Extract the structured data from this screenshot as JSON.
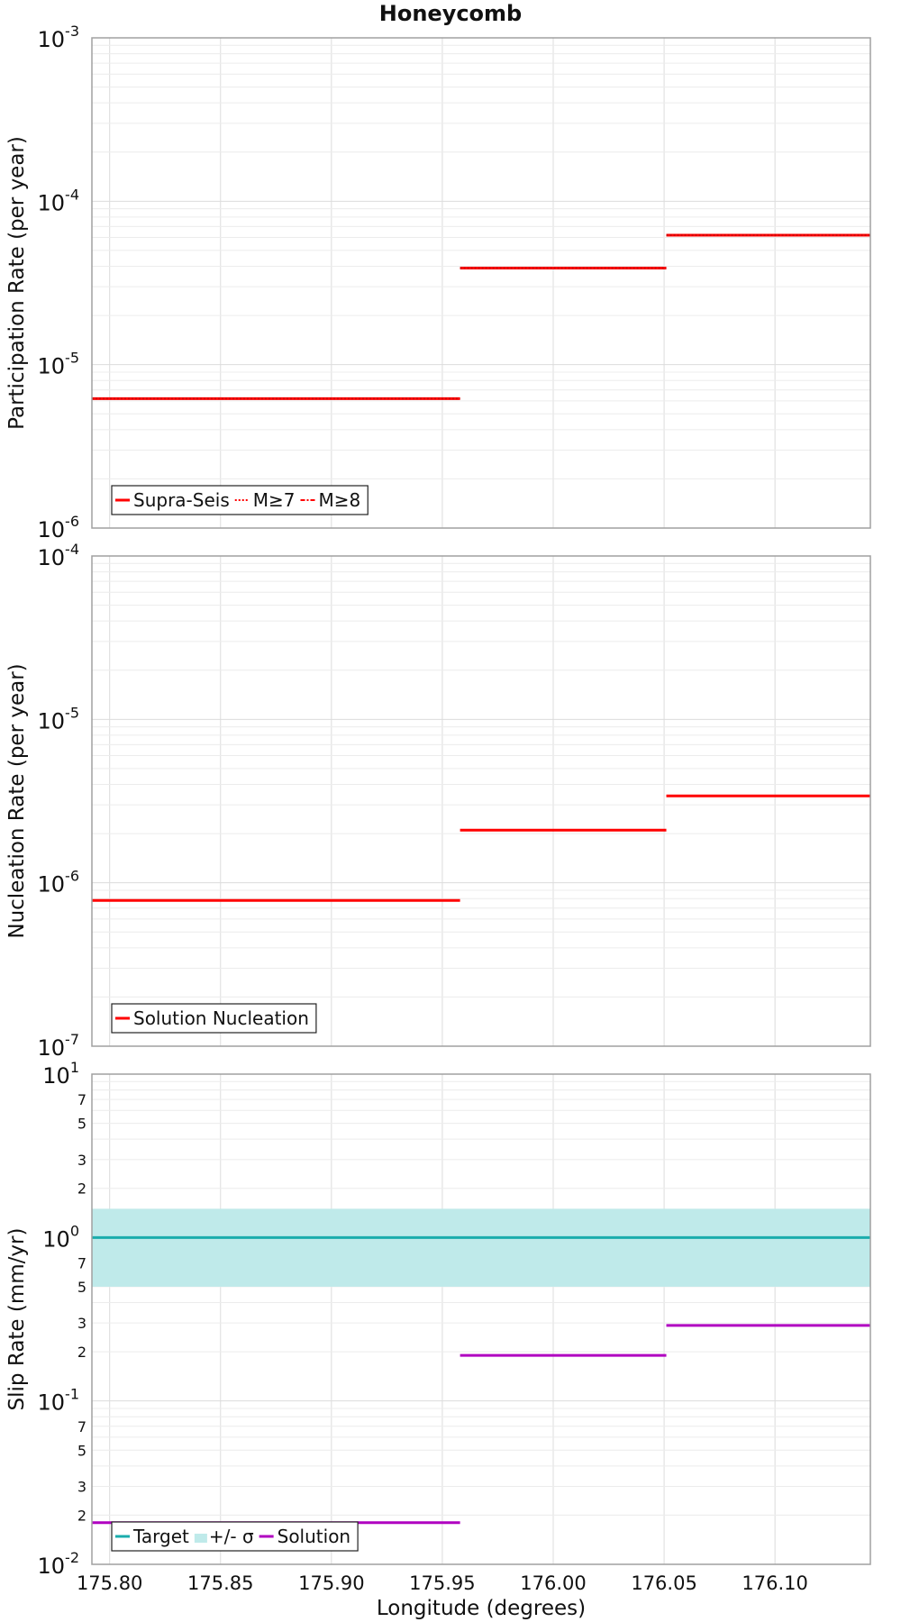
{
  "title": "Honeycomb",
  "colors": {
    "red": "#ff0000",
    "teal": "#1aacac",
    "teal_band": "#bfeaea",
    "magenta": "#b000c0"
  },
  "chart_data": [
    {
      "type": "line",
      "title": "Honeycomb",
      "xlabel": "Longitude (degrees)",
      "ylabel": "Participation Rate (per year)",
      "y_scale": "log",
      "xlim": [
        175.792,
        176.143
      ],
      "ylim": [
        1e-06,
        0.001
      ],
      "ytick_labels": [
        {
          "base": "10",
          "exp": "-6",
          "value": 1e-06
        },
        {
          "base": "10",
          "exp": "-5",
          "value": 1e-05
        },
        {
          "base": "10",
          "exp": "-4",
          "value": 0.0001
        },
        {
          "base": "10",
          "exp": "-3",
          "value": 0.001
        }
      ],
      "grid": true,
      "legend_position": "bottom-left",
      "series": [
        {
          "name": "Supra-Seis",
          "style": "solid",
          "color": "#ff0000",
          "segments": [
            [
              175.792,
              175.958,
              6.2e-06
            ],
            [
              175.958,
              176.051,
              3.9e-05
            ],
            [
              176.051,
              176.143,
              6.2e-05
            ]
          ]
        },
        {
          "name": "M≥7",
          "style": "dotted",
          "color": "#ff0000",
          "segments": [
            [
              175.792,
              175.958,
              6.2e-06
            ],
            [
              175.958,
              176.051,
              3.9e-05
            ],
            [
              176.051,
              176.143,
              6.2e-05
            ]
          ]
        },
        {
          "name": "M≥8",
          "style": "dashdot",
          "color": "#ff0000",
          "segments": []
        }
      ]
    },
    {
      "type": "line",
      "ylabel": "Nucleation Rate (per year)",
      "y_scale": "log",
      "xlim": [
        175.792,
        176.143
      ],
      "ylim": [
        1e-07,
        0.0001
      ],
      "ytick_labels": [
        {
          "base": "10",
          "exp": "-7",
          "value": 1e-07
        },
        {
          "base": "10",
          "exp": "-6",
          "value": 1e-06
        },
        {
          "base": "10",
          "exp": "-5",
          "value": 1e-05
        },
        {
          "base": "10",
          "exp": "-4",
          "value": 0.0001
        }
      ],
      "grid": true,
      "legend_position": "bottom-left",
      "series": [
        {
          "name": "Solution Nucleation",
          "style": "solid",
          "color": "#ff0000",
          "segments": [
            [
              175.792,
              175.958,
              7.8e-07
            ],
            [
              175.958,
              176.051,
              2.1e-06
            ],
            [
              176.051,
              176.143,
              3.4e-06
            ]
          ]
        }
      ]
    },
    {
      "type": "line",
      "xlabel": "Longitude (degrees)",
      "ylabel": "Slip Rate (mm/yr)",
      "y_scale": "log",
      "xlim": [
        175.792,
        176.143
      ],
      "ylim": [
        0.01,
        10
      ],
      "xtick_labels": [
        "175.80",
        "175.85",
        "175.90",
        "175.95",
        "176.00",
        "176.05",
        "176.10"
      ],
      "xtick_values": [
        175.8,
        175.85,
        175.9,
        175.95,
        176.0,
        176.05,
        176.1
      ],
      "ytick_labels": [
        {
          "base": "10",
          "exp": "-2",
          "value": 0.01
        },
        {
          "base": "10",
          "exp": "-1",
          "value": 0.1
        },
        {
          "base": "10",
          "exp": "0",
          "value": 1
        },
        {
          "base": "10",
          "exp": "1",
          "value": 10
        }
      ],
      "minor_tick_labels": [
        {
          "label": "2",
          "value": 0.02
        },
        {
          "label": "3",
          "value": 0.03
        },
        {
          "label": "5",
          "value": 0.05
        },
        {
          "label": "7",
          "value": 0.07
        },
        {
          "label": "2",
          "value": 0.2
        },
        {
          "label": "3",
          "value": 0.3
        },
        {
          "label": "5",
          "value": 0.5
        },
        {
          "label": "7",
          "value": 0.7
        },
        {
          "label": "2",
          "value": 2
        },
        {
          "label": "3",
          "value": 3
        },
        {
          "label": "5",
          "value": 5
        },
        {
          "label": "7",
          "value": 7
        }
      ],
      "grid": true,
      "legend_position": "bottom-left",
      "series": [
        {
          "name": "Target",
          "style": "solid",
          "color": "#1aacac",
          "segments": [
            [
              175.792,
              176.143,
              1.0
            ]
          ]
        },
        {
          "name": "+/- σ",
          "style": "band",
          "color": "#bfeaea",
          "band": [
            175.792,
            176.143,
            0.5,
            1.5
          ]
        },
        {
          "name": "Solution",
          "style": "solid",
          "color": "#b000c0",
          "segments": [
            [
              175.792,
              175.958,
              0.018
            ],
            [
              175.958,
              176.051,
              0.19
            ],
            [
              176.051,
              176.143,
              0.29
            ]
          ]
        }
      ]
    }
  ]
}
